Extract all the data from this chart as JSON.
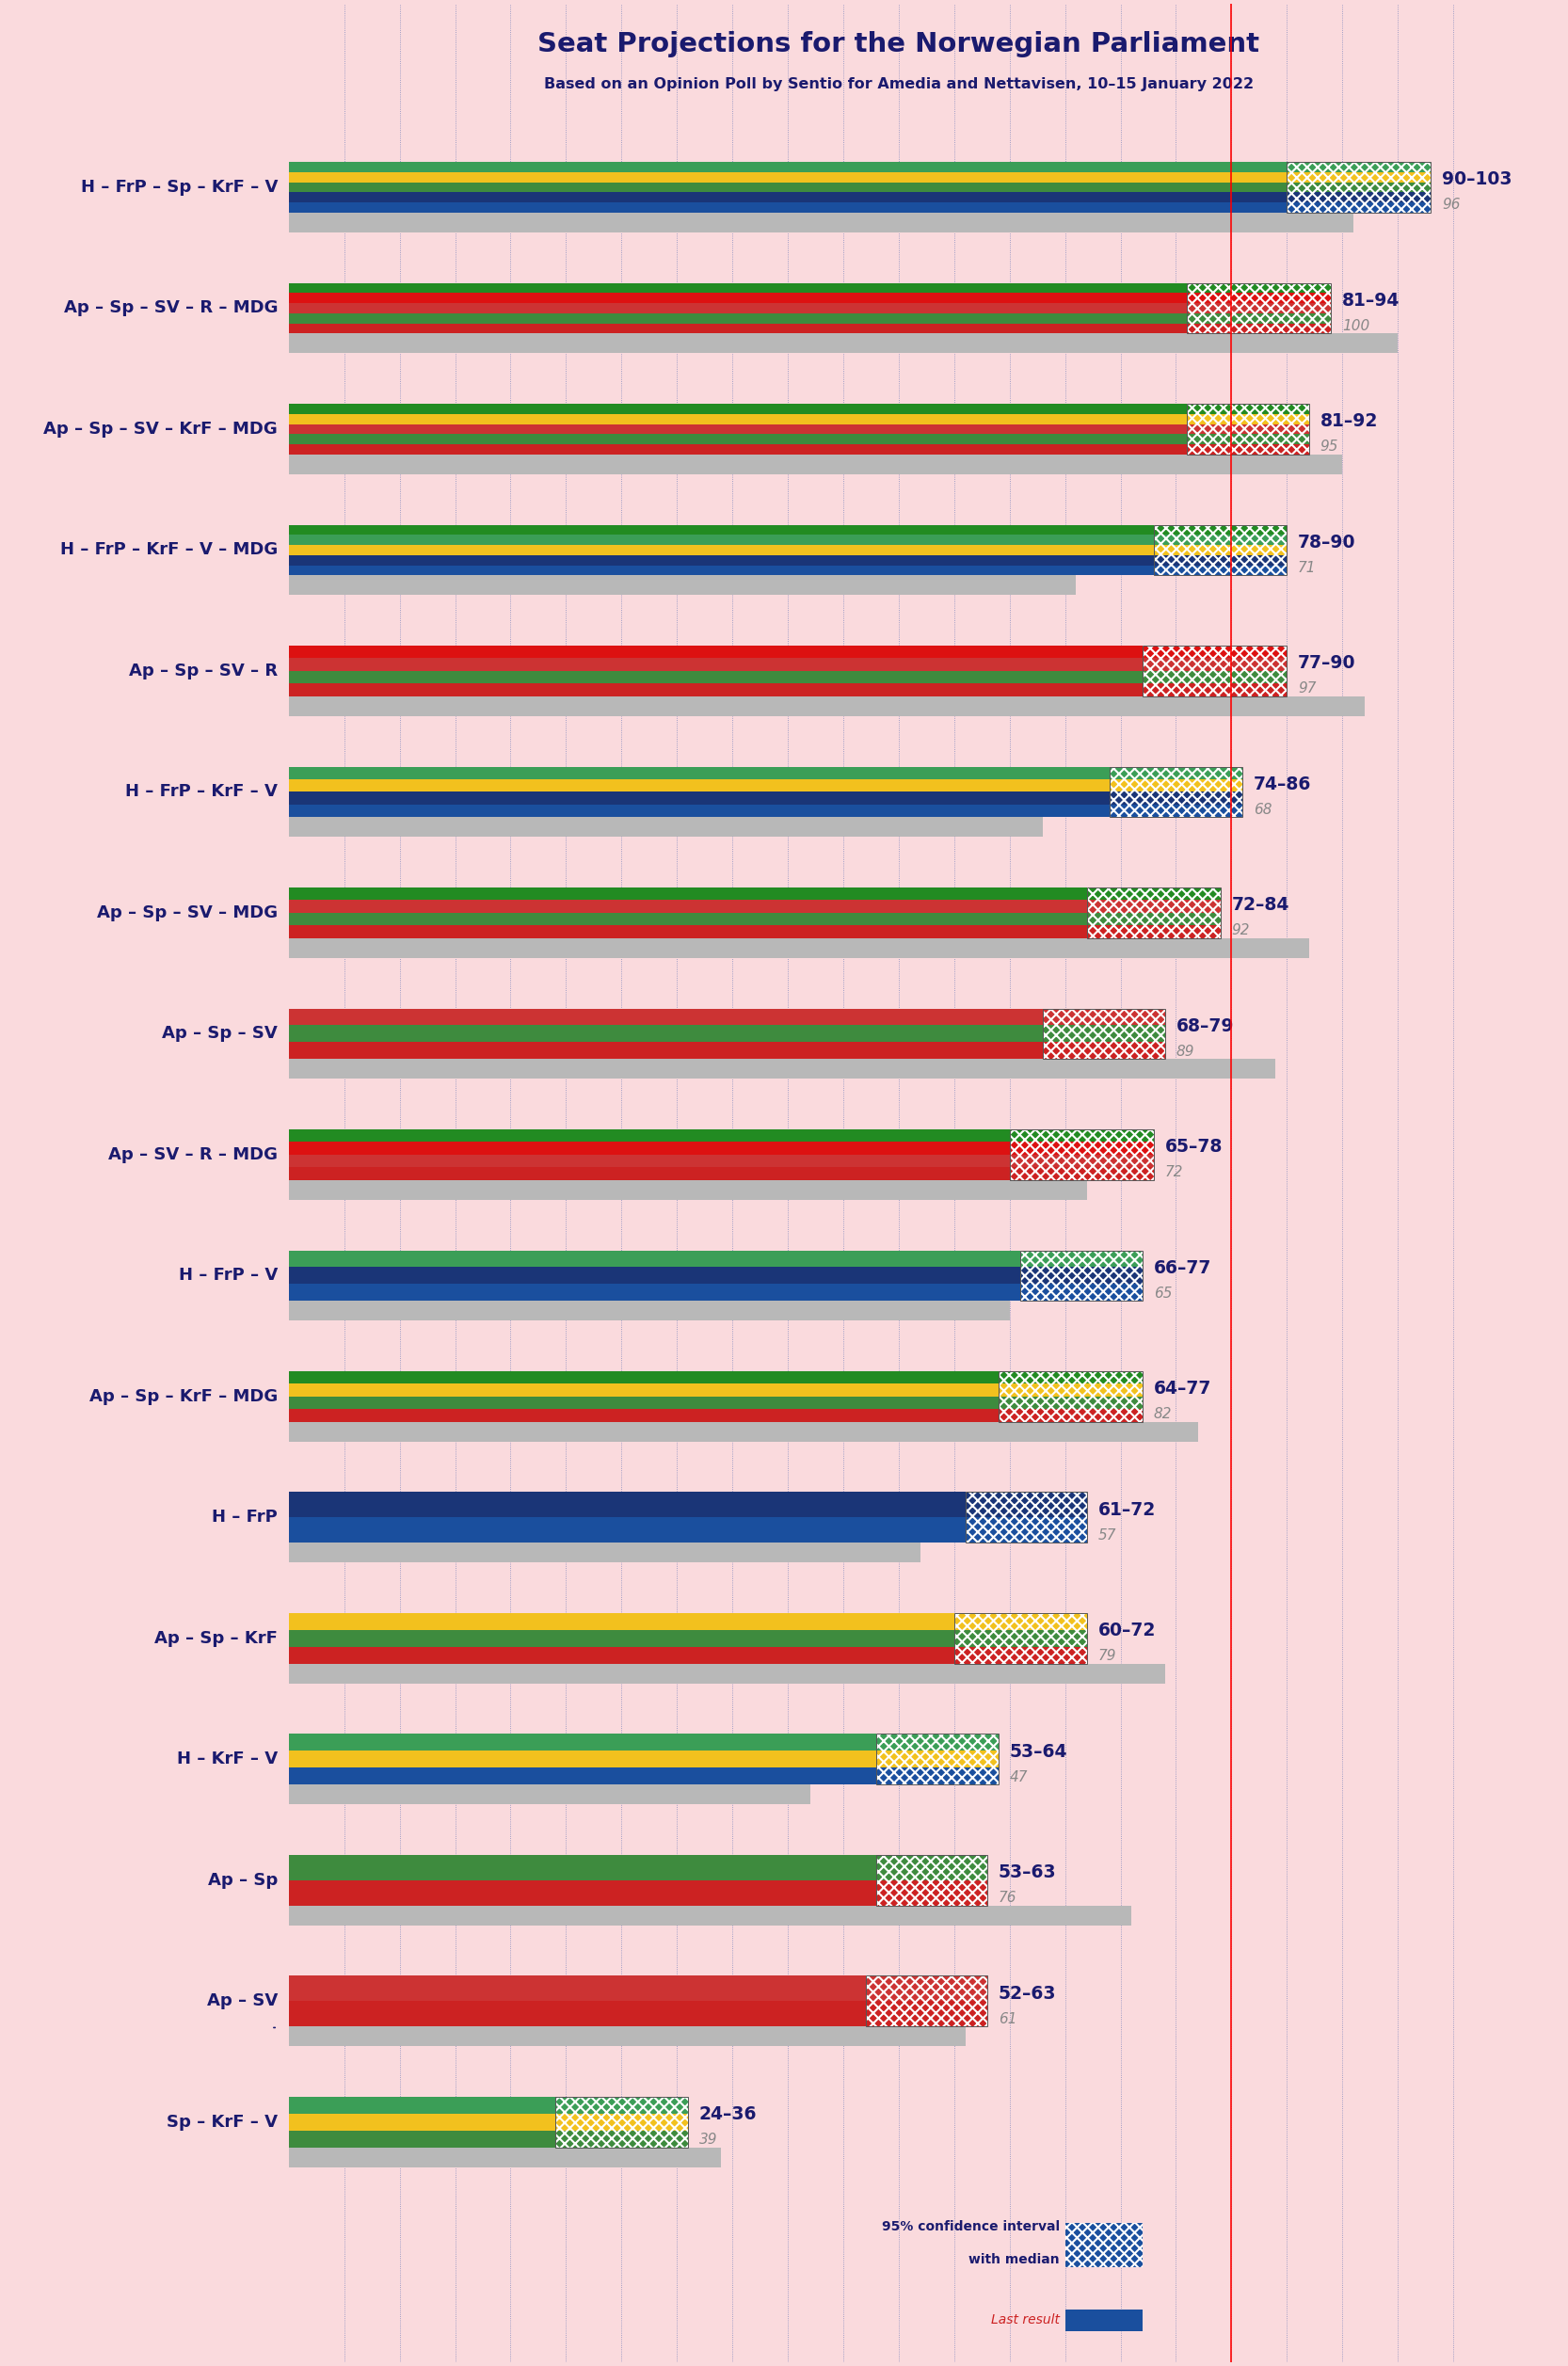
{
  "title": "Seat Projections for the Norwegian Parliament",
  "subtitle": "Based on an Opinion Poll by Sentio for Amedia and Nettavisen, 10–15 January 2022",
  "background_color": "#fadadd",
  "title_color": "#1a1a6e",
  "subtitle_color": "#1a1a6e",
  "majority_line": 85,
  "coalitions": [
    {
      "label": "H – FrP – Sp – KrF – V",
      "range_low": 90,
      "range_high": 103,
      "median": 96,
      "last": 96,
      "underline": false,
      "colors": [
        "#1a4f9e",
        "#1a3577",
        "#3e8b3e",
        "#f2c11e",
        "#3b9e57"
      ]
    },
    {
      "label": "Ap – Sp – SV – R – MDG",
      "range_low": 81,
      "range_high": 94,
      "median": 100,
      "last": 100,
      "underline": false,
      "colors": [
        "#cc2222",
        "#3e8b3e",
        "#cc3333",
        "#dd1111",
        "#228b22"
      ]
    },
    {
      "label": "Ap – Sp – SV – KrF – MDG",
      "range_low": 81,
      "range_high": 92,
      "median": 95,
      "last": 95,
      "underline": false,
      "colors": [
        "#cc2222",
        "#3e8b3e",
        "#cc3333",
        "#f2c11e",
        "#228b22"
      ]
    },
    {
      "label": "H – FrP – KrF – V – MDG",
      "range_low": 78,
      "range_high": 90,
      "median": 71,
      "last": 71,
      "underline": false,
      "colors": [
        "#1a4f9e",
        "#1a3577",
        "#f2c11e",
        "#3b9e57",
        "#228b22"
      ]
    },
    {
      "label": "Ap – Sp – SV – R",
      "range_low": 77,
      "range_high": 90,
      "median": 97,
      "last": 97,
      "underline": false,
      "colors": [
        "#cc2222",
        "#3e8b3e",
        "#cc3333",
        "#dd1111"
      ]
    },
    {
      "label": "H – FrP – KrF – V",
      "range_low": 74,
      "range_high": 86,
      "median": 68,
      "last": 68,
      "underline": false,
      "colors": [
        "#1a4f9e",
        "#1a3577",
        "#f2c11e",
        "#3b9e57"
      ]
    },
    {
      "label": "Ap – Sp – SV – MDG",
      "range_low": 72,
      "range_high": 84,
      "median": 92,
      "last": 92,
      "underline": false,
      "colors": [
        "#cc2222",
        "#3e8b3e",
        "#cc3333",
        "#228b22"
      ]
    },
    {
      "label": "Ap – Sp – SV",
      "range_low": 68,
      "range_high": 79,
      "median": 89,
      "last": 89,
      "underline": false,
      "colors": [
        "#cc2222",
        "#3e8b3e",
        "#cc3333"
      ]
    },
    {
      "label": "Ap – SV – R – MDG",
      "range_low": 65,
      "range_high": 78,
      "median": 72,
      "last": 72,
      "underline": false,
      "colors": [
        "#cc2222",
        "#cc3333",
        "#dd1111",
        "#228b22"
      ]
    },
    {
      "label": "H – FrP – V",
      "range_low": 66,
      "range_high": 77,
      "median": 65,
      "last": 65,
      "underline": false,
      "colors": [
        "#1a4f9e",
        "#1a3577",
        "#3b9e57"
      ]
    },
    {
      "label": "Ap – Sp – KrF – MDG",
      "range_low": 64,
      "range_high": 77,
      "median": 82,
      "last": 82,
      "underline": false,
      "colors": [
        "#cc2222",
        "#3e8b3e",
        "#f2c11e",
        "#228b22"
      ]
    },
    {
      "label": "H – FrP",
      "range_low": 61,
      "range_high": 72,
      "median": 57,
      "last": 57,
      "underline": false,
      "colors": [
        "#1a4f9e",
        "#1a3577"
      ]
    },
    {
      "label": "Ap – Sp – KrF",
      "range_low": 60,
      "range_high": 72,
      "median": 79,
      "last": 79,
      "underline": false,
      "colors": [
        "#cc2222",
        "#3e8b3e",
        "#f2c11e"
      ]
    },
    {
      "label": "H – KrF – V",
      "range_low": 53,
      "range_high": 64,
      "median": 47,
      "last": 47,
      "underline": false,
      "colors": [
        "#1a4f9e",
        "#f2c11e",
        "#3b9e57"
      ]
    },
    {
      "label": "Ap – Sp",
      "range_low": 53,
      "range_high": 63,
      "median": 76,
      "last": 76,
      "underline": false,
      "colors": [
        "#cc2222",
        "#3e8b3e"
      ]
    },
    {
      "label": "Ap – SV",
      "range_low": 52,
      "range_high": 63,
      "median": 61,
      "last": 61,
      "underline": true,
      "colors": [
        "#cc2222",
        "#cc3333"
      ]
    },
    {
      "label": "Sp – KrF – V",
      "range_low": 24,
      "range_high": 36,
      "median": 39,
      "last": 39,
      "underline": false,
      "colors": [
        "#3e8b3e",
        "#f2c11e",
        "#3b9e57"
      ]
    }
  ]
}
